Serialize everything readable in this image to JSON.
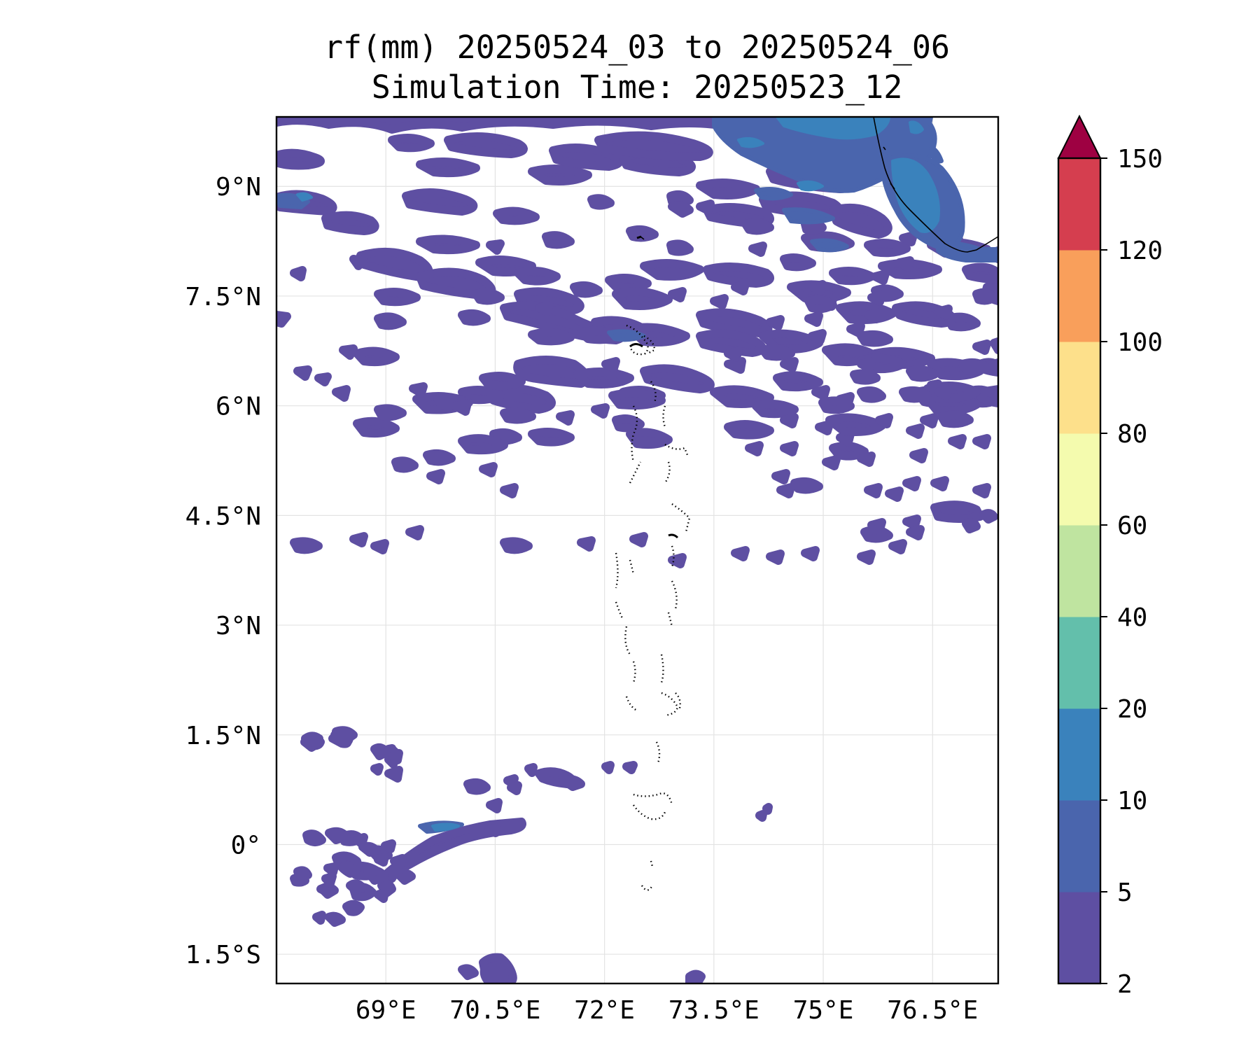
{
  "title": {
    "line1": "rf(mm) 20250524_03 to 20250524_06",
    "line2": "Simulation Time: 20250523_12"
  },
  "map": {
    "lon_range": [
      67.5,
      77.4
    ],
    "lat_range": [
      -1.9,
      9.95
    ],
    "x_ticks": [
      {
        "value": 69,
        "label": "69°E"
      },
      {
        "value": 70.5,
        "label": "70.5°E"
      },
      {
        "value": 72,
        "label": "72°E"
      },
      {
        "value": 73.5,
        "label": "73.5°E"
      },
      {
        "value": 75,
        "label": "75°E"
      },
      {
        "value": 76.5,
        "label": "76.5°E"
      }
    ],
    "y_ticks": [
      {
        "value": 9,
        "label": "9°N"
      },
      {
        "value": 7.5,
        "label": "7.5°N"
      },
      {
        "value": 6,
        "label": "6°N"
      },
      {
        "value": 4.5,
        "label": "4.5°N"
      },
      {
        "value": 3,
        "label": "3°N"
      },
      {
        "value": 1.5,
        "label": "1.5°N"
      },
      {
        "value": 0,
        "label": "0°"
      },
      {
        "value": -1.5,
        "label": "1.5°S"
      }
    ],
    "grid": true
  },
  "colorbar": {
    "levels": [
      {
        "value": 2,
        "label": "2"
      },
      {
        "value": 5,
        "label": "5"
      },
      {
        "value": 10,
        "label": "10"
      },
      {
        "value": 20,
        "label": "20"
      },
      {
        "value": 40,
        "label": "40"
      },
      {
        "value": 60,
        "label": "60"
      },
      {
        "value": 80,
        "label": "80"
      },
      {
        "value": 100,
        "label": "100"
      },
      {
        "value": 120,
        "label": "120"
      },
      {
        "value": 150,
        "label": "150"
      }
    ],
    "colors": [
      "#5e4fa2",
      "#4a65ad",
      "#3a82bc",
      "#63bfab",
      "#bfe4a0",
      "#f4fbae",
      "#fde08b",
      "#f99f5b",
      "#d53e4f"
    ],
    "extend_color": "#9e0142"
  },
  "colors": {
    "light": "#5e4fa2",
    "moderate": "#4a65ad",
    "heavy": "#3a82bc"
  }
}
